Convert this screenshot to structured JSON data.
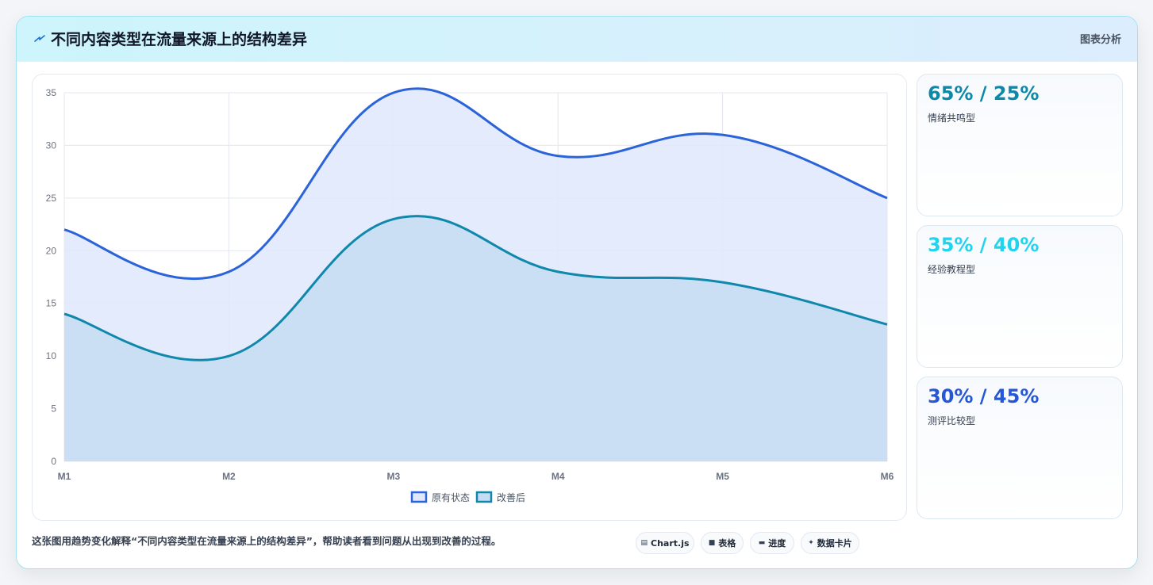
{
  "header": {
    "icon": "zigzag-arrow-icon",
    "title": "不同内容类型在流量来源上的结构差异",
    "right_label": "图表分析"
  },
  "chart_data": {
    "type": "area",
    "categories": [
      "M1",
      "M2",
      "M3",
      "M4",
      "M5",
      "M6"
    ],
    "series": [
      {
        "name": "原有状态",
        "values": [
          22,
          18,
          35,
          29,
          31,
          25
        ],
        "color": "#2b63d9",
        "fill": "#dfe8fb"
      },
      {
        "name": "改善后",
        "values": [
          14,
          10,
          23,
          18,
          17,
          13
        ],
        "color": "#1088ab",
        "fill": "#c5dcf2"
      }
    ],
    "y_ticks": [
      0,
      5,
      10,
      15,
      20,
      25,
      30,
      35
    ],
    "ylim": [
      0,
      35
    ],
    "grid": true,
    "legend": "bottom"
  },
  "side_cards": [
    {
      "value": "65% / 25%",
      "label": "情绪共鸣型",
      "color": "#0d89a8"
    },
    {
      "value": "35% / 40%",
      "label": "经验教程型",
      "color": "#22d3ee"
    },
    {
      "value": "30% / 45%",
      "label": "测评比较型",
      "color": "#2557d6"
    }
  ],
  "footer": {
    "caption": "这张图用趋势变化解释“不同内容类型在流量来源上的结构差异”，帮助读者看到问题从出现到改善的过程。",
    "pills": [
      {
        "icon": "chart-icon",
        "label": "Chart.js"
      },
      {
        "icon": "table-icon",
        "label": "表格"
      },
      {
        "icon": "progress-icon",
        "label": "进度"
      },
      {
        "icon": "sparkle-icon",
        "label": "数据卡片"
      }
    ]
  }
}
